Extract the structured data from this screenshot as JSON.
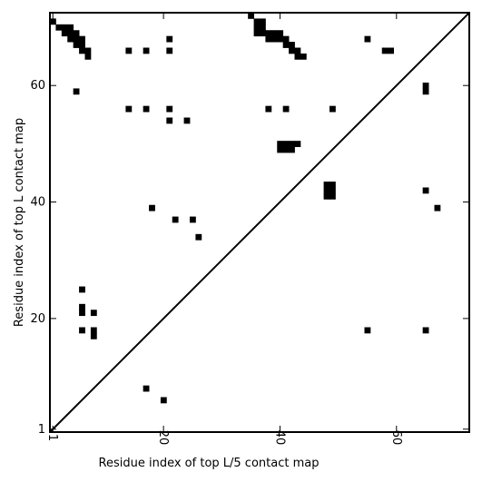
{
  "chart_data": {
    "type": "heatmap",
    "xlabel": "Residue index of top L/5 contact map",
    "ylabel": "Residue index of top L contact map",
    "xlim": [
      0.5,
      72.5
    ],
    "ylim": [
      0.5,
      72.5
    ],
    "x_ticks": [
      {
        "value": 1,
        "label": "1"
      },
      {
        "value": 20,
        "label": "20"
      },
      {
        "value": 40,
        "label": "40"
      },
      {
        "value": 60,
        "label": "60"
      }
    ],
    "y_ticks": [
      {
        "value": 1,
        "label": "1"
      },
      {
        "value": 20,
        "label": "20"
      },
      {
        "value": 40,
        "label": "40"
      },
      {
        "value": 60,
        "label": "60"
      }
    ],
    "diagonal": true,
    "grid": false,
    "cell_color": "#000000",
    "series": [
      {
        "name": "top L",
        "cells": [
          [
            1,
            71
          ],
          [
            2,
            70
          ],
          [
            3,
            70
          ],
          [
            3,
            69
          ],
          [
            4,
            70
          ],
          [
            4,
            69
          ],
          [
            4,
            68
          ],
          [
            5,
            69
          ],
          [
            5,
            68
          ],
          [
            5,
            67
          ],
          [
            6,
            68
          ],
          [
            6,
            67
          ],
          [
            6,
            66
          ],
          [
            7,
            66
          ],
          [
            7,
            65
          ],
          [
            14,
            66
          ],
          [
            17,
            66
          ],
          [
            21,
            68
          ],
          [
            21,
            66
          ],
          [
            5,
            59
          ],
          [
            14,
            56
          ],
          [
            17,
            56
          ],
          [
            21,
            56
          ],
          [
            21,
            54
          ],
          [
            24,
            54
          ],
          [
            35,
            72
          ],
          [
            36,
            71
          ],
          [
            37,
            71
          ],
          [
            36,
            70
          ],
          [
            37,
            70
          ],
          [
            36,
            69
          ],
          [
            37,
            69
          ],
          [
            38,
            69
          ],
          [
            39,
            69
          ],
          [
            40,
            69
          ],
          [
            38,
            68
          ],
          [
            39,
            68
          ],
          [
            40,
            68
          ],
          [
            41,
            68
          ],
          [
            41,
            67
          ],
          [
            42,
            67
          ],
          [
            42,
            66
          ],
          [
            43,
            66
          ],
          [
            43,
            65
          ],
          [
            44,
            65
          ],
          [
            38,
            56
          ],
          [
            41,
            56
          ],
          [
            49,
            56
          ],
          [
            55,
            68
          ],
          [
            58,
            66
          ],
          [
            59,
            66
          ],
          [
            65,
            60
          ],
          [
            65,
            59
          ],
          [
            40,
            50
          ],
          [
            41,
            50
          ],
          [
            42,
            50
          ],
          [
            43,
            50
          ],
          [
            40,
            49
          ],
          [
            41,
            49
          ],
          [
            42,
            49
          ],
          [
            48,
            43
          ],
          [
            49,
            43
          ],
          [
            48,
            42
          ],
          [
            49,
            42
          ],
          [
            48,
            41
          ],
          [
            49,
            41
          ],
          [
            65,
            42
          ],
          [
            67,
            39
          ],
          [
            18,
            39
          ],
          [
            22,
            37
          ],
          [
            25,
            37
          ],
          [
            26,
            34
          ]
        ]
      },
      {
        "name": "top L/5",
        "cells": [
          [
            6,
            25
          ],
          [
            6,
            22
          ],
          [
            6,
            21
          ],
          [
            8,
            21
          ],
          [
            6,
            18
          ],
          [
            8,
            18
          ],
          [
            8,
            17
          ],
          [
            55,
            18
          ],
          [
            65,
            18
          ],
          [
            17,
            8
          ],
          [
            20,
            6
          ]
        ]
      }
    ]
  }
}
